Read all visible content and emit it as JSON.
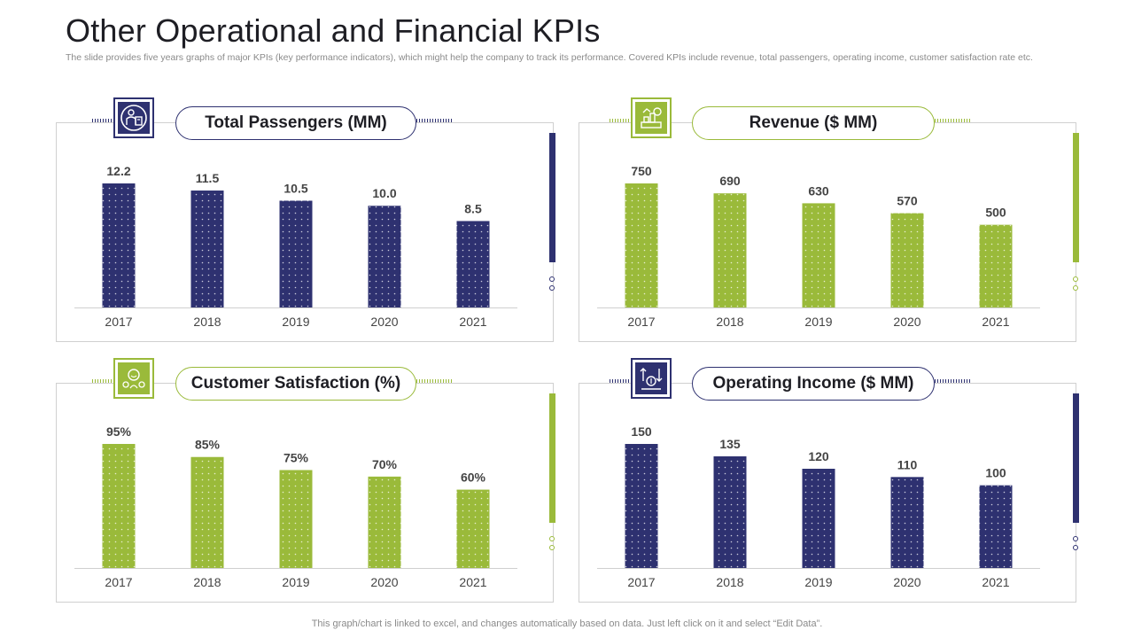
{
  "header": {
    "title": "Other Operational and Financial KPIs",
    "subtitle": "The slide provides five years graphs of major KPIs (key performance indicators), which might help the company to track its performance. Covered KPIs include revenue, total passengers, operating income, customer satisfaction rate etc."
  },
  "footer": {
    "note": "This graph/chart is linked to excel,  and changes automatically based on data. Just left click on it and select “Edit Data”."
  },
  "colors": {
    "navy": "#2e3170",
    "green": "#9aba3a",
    "axis": "#cfcfcf",
    "text": "#444444"
  },
  "panels": [
    {
      "title": "Total Passengers (MM)",
      "icon": "passengers-icon",
      "color": "navy"
    },
    {
      "title": "Revenue ($ MM)",
      "icon": "revenue-icon",
      "color": "green"
    },
    {
      "title": "Customer Satisfaction (%)",
      "icon": "satisfaction-icon",
      "color": "green"
    },
    {
      "title": "Operating Income ($ MM)",
      "icon": "income-icon",
      "color": "navy"
    }
  ],
  "chart_data": [
    {
      "type": "bar",
      "title": "Total Passengers (MM)",
      "categories": [
        "2017",
        "2018",
        "2019",
        "2020",
        "2021"
      ],
      "values": [
        12.2,
        11.5,
        10.5,
        10.0,
        8.5
      ],
      "labels": [
        "12.2",
        "11.5",
        "10.5",
        "10.0",
        "8.5"
      ],
      "ylim": [
        0,
        12.2
      ],
      "grid": false,
      "color": "navy"
    },
    {
      "type": "bar",
      "title": "Revenue ($ MM)",
      "categories": [
        "2017",
        "2018",
        "2019",
        "2020",
        "2021"
      ],
      "values": [
        750,
        690,
        630,
        570,
        500
      ],
      "labels": [
        "750",
        "690",
        "630",
        "570",
        "500"
      ],
      "ylim": [
        0,
        750
      ],
      "grid": false,
      "color": "green"
    },
    {
      "type": "bar",
      "title": "Customer Satisfaction (%)",
      "categories": [
        "2017",
        "2018",
        "2019",
        "2020",
        "2021"
      ],
      "values": [
        95,
        85,
        75,
        70,
        60
      ],
      "labels": [
        "95%",
        "85%",
        "75%",
        "70%",
        "60%"
      ],
      "ylim": [
        0,
        95
      ],
      "grid": false,
      "color": "green"
    },
    {
      "type": "bar",
      "title": "Operating Income ($ MM)",
      "categories": [
        "2017",
        "2018",
        "2019",
        "2020",
        "2021"
      ],
      "values": [
        150,
        135,
        120,
        110,
        100
      ],
      "labels": [
        "150",
        "135",
        "120",
        "110",
        "100"
      ],
      "ylim": [
        0,
        150
      ],
      "grid": false,
      "color": "navy"
    }
  ]
}
